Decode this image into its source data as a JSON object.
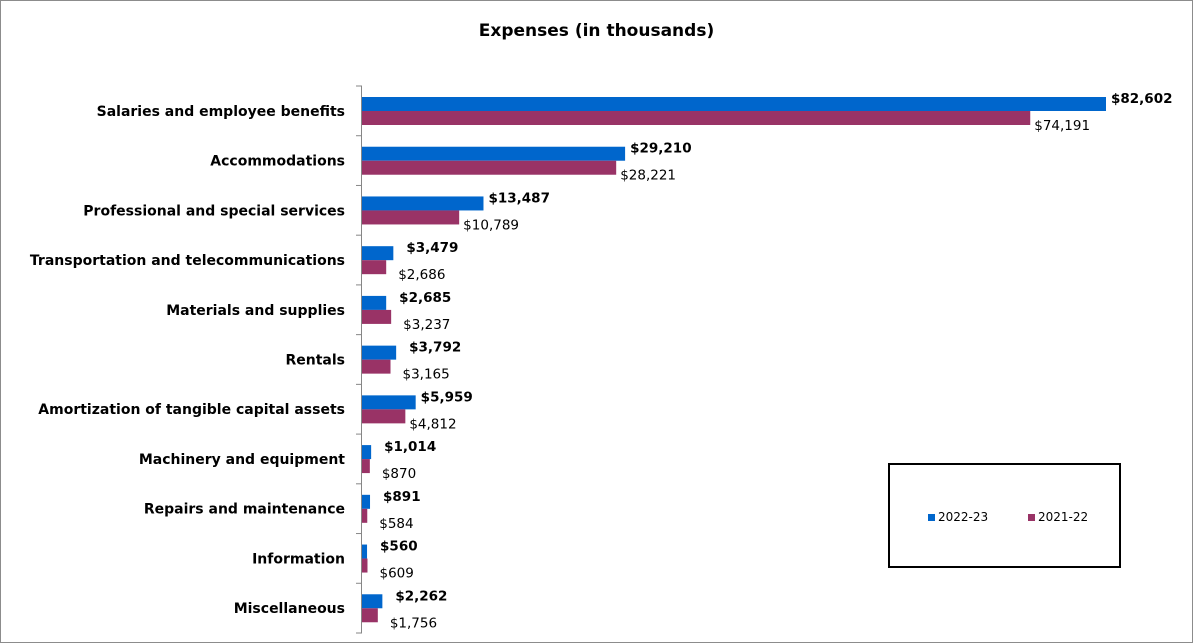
{
  "chart_data": {
    "type": "bar",
    "orientation": "horizontal",
    "title": "Expenses (in thousands)",
    "categories": [
      "Salaries and employee benefits",
      "Accommodations",
      "Professional and special services",
      "Transportation and telecommunications",
      "Materials and supplies",
      "Rentals",
      "Amortization of tangible capital assets",
      "Machinery and equipment",
      "Repairs and maintenance",
      "Information",
      "Miscellaneous"
    ],
    "series": [
      {
        "name": "2022-23",
        "color": "#0066CC",
        "values": [
          82602,
          29210,
          13487,
          3479,
          2685,
          3792,
          5959,
          1014,
          891,
          560,
          2262
        ],
        "labels": [
          "$82,602",
          "$29,210",
          "$13,487",
          "$3,479",
          "$2,685",
          "$3,792",
          "$5,959",
          "$1,014",
          "$891",
          "$560",
          "$2,262"
        ]
      },
      {
        "name": "2021-22",
        "color": "#993366",
        "values": [
          74191,
          28221,
          10789,
          2686,
          3237,
          3165,
          4812,
          870,
          584,
          609,
          1756
        ],
        "labels": [
          "$74,191",
          "$28,221",
          "$10,789",
          "$2,686",
          "$3,237",
          "$3,165",
          "$4,812",
          "$870",
          "$584",
          "$609",
          "$1,756"
        ]
      }
    ],
    "legend_position": "bottom-right",
    "grid": false
  }
}
